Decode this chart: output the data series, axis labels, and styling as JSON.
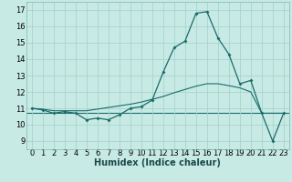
{
  "xlabel": "Humidex (Indice chaleur)",
  "ylabel": "",
  "bg_color": "#c8eae4",
  "grid_color": "#a8d4ce",
  "line_color": "#1a6b6b",
  "xlim": [
    -0.5,
    23.5
  ],
  "ylim": [
    8.5,
    17.5
  ],
  "yticks": [
    9,
    10,
    11,
    12,
    13,
    14,
    15,
    16,
    17
  ],
  "xticks": [
    0,
    1,
    2,
    3,
    4,
    5,
    6,
    7,
    8,
    9,
    10,
    11,
    12,
    13,
    14,
    15,
    16,
    17,
    18,
    19,
    20,
    21,
    22,
    23
  ],
  "curve1_x": [
    0,
    1,
    2,
    3,
    4,
    5,
    6,
    7,
    8,
    9,
    10,
    11,
    12,
    13,
    14,
    15,
    16,
    17,
    18,
    19,
    20,
    21,
    22,
    23
  ],
  "curve1_y": [
    11.0,
    10.9,
    10.7,
    10.8,
    10.7,
    10.3,
    10.4,
    10.3,
    10.6,
    11.0,
    11.1,
    11.5,
    13.2,
    14.7,
    15.1,
    16.8,
    16.9,
    15.3,
    14.3,
    12.5,
    12.7,
    10.7,
    9.0,
    10.7
  ],
  "curve2_x": [
    0,
    1,
    2,
    3,
    4,
    5,
    6,
    7,
    8,
    9,
    10,
    11,
    12,
    13,
    14,
    15,
    16,
    17,
    18,
    19,
    20,
    21,
    22,
    23
  ],
  "curve2_y": [
    11.0,
    10.95,
    10.85,
    10.85,
    10.85,
    10.85,
    10.95,
    11.05,
    11.15,
    11.25,
    11.38,
    11.55,
    11.72,
    11.95,
    12.15,
    12.35,
    12.5,
    12.5,
    12.38,
    12.25,
    12.0,
    10.7,
    10.7,
    10.7
  ],
  "flat_line_y": 10.7,
  "xlabel_fontsize": 7,
  "tick_fontsize": 6
}
